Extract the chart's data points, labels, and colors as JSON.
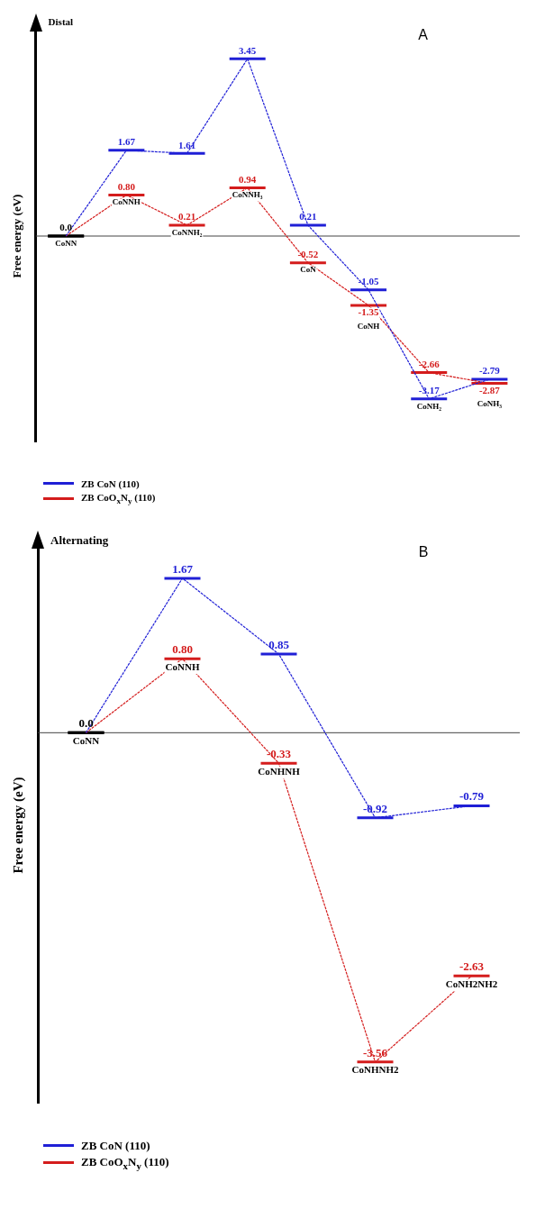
{
  "chart_data": [
    {
      "type": "line",
      "title": "Distal",
      "ylabel": "Free energy (eV)",
      "annotations": [
        "A"
      ],
      "categories": [
        "CoNN",
        "CoNNH",
        "CoNNH₂",
        "CoNNH₃",
        "CoN",
        "CoNH",
        "CoNH₂",
        "CoNH₃"
      ],
      "series": [
        {
          "name": "ZB CoN (110)",
          "color": "#1f1fd6",
          "colors": [
            "#000000",
            "#1f1fd6",
            "#1f1fd6",
            "#1f1fd6",
            "#1f1fd6",
            "#1f1fd6",
            "#1f1fd6",
            "#1f1fd6"
          ],
          "values": [
            0,
            1.67,
            1.61,
            3.45,
            0.21,
            -1.05,
            -3.17,
            -2.79
          ],
          "value_labels": [
            "0.0",
            "1.67",
            "1.61",
            "3.45",
            "0.21",
            "-1.05",
            "-3.17",
            "-2.79"
          ]
        },
        {
          "name": "ZB CoO$_{x}$N$_{y}$ (110)",
          "color": "#d41c1c",
          "colors": [
            "#000000",
            "#d41c1c",
            "#d41c1c",
            "#d41c1c",
            "#d41c1c",
            "#d41c1c",
            "#d41c1c",
            "#d41c1c"
          ],
          "values": [
            0,
            0.8,
            0.21,
            0.94,
            -0.52,
            -1.35,
            -2.66,
            -2.87
          ],
          "value_labels": [
            null,
            "0.80",
            "0.21",
            "0.94",
            "-0.52",
            "-1.35",
            "-2.66",
            "-2.87"
          ]
        }
      ],
      "ref_lines": [
        {
          "axis": "y",
          "value": 0
        }
      ],
      "line_style": "dotted",
      "grid": false,
      "legend": "bottom left"
    },
    {
      "type": "line",
      "title": "Alternating",
      "ylabel": "Free energy (eV)",
      "annotations": [
        "B"
      ],
      "categories": [
        "CoNN",
        "CoNNH",
        "CoNHNH",
        "CoNHNH2",
        "CoNH2NH2"
      ],
      "series": [
        {
          "name": "ZB CoN (110)",
          "color": "#1f1fd6",
          "colors": [
            "#000000",
            "#1f1fd6",
            "#1f1fd6",
            "#1f1fd6",
            "#1f1fd6"
          ],
          "values": [
            0,
            1.67,
            0.85,
            -0.92,
            -0.79
          ],
          "value_labels": [
            "0.0",
            "1.67",
            "0.85",
            "-0.92",
            "-0.79"
          ]
        },
        {
          "name": "ZB CoO$_{x}$N$_{y}$ (110)",
          "color": "#d41c1c",
          "colors": [
            "#000000",
            "#d41c1c",
            "#d41c1c",
            "#d41c1c",
            "#d41c1c"
          ],
          "values": [
            0,
            0.8,
            -0.33,
            -3.56,
            -2.63
          ],
          "value_labels": [
            null,
            "0.80",
            "-0.33",
            "-3.56",
            "-2.63"
          ]
        }
      ],
      "ref_lines": [
        {
          "axis": "y",
          "value": 0
        }
      ],
      "line_style": "dotted",
      "grid": false,
      "legend": "bottom left"
    }
  ]
}
